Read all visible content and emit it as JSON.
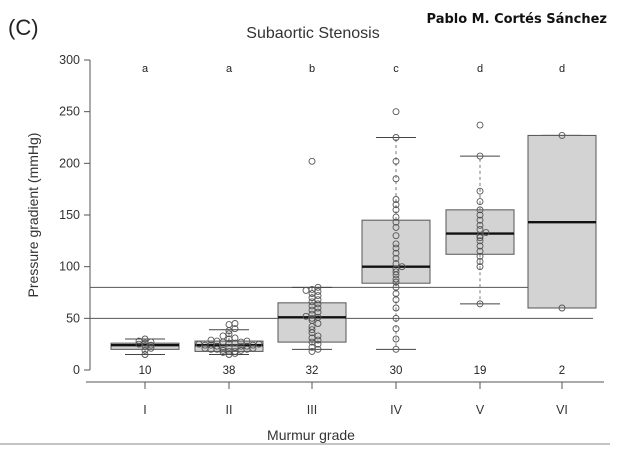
{
  "panel_label": "(C)",
  "author": "Pablo M. Cortés Sánchez",
  "chart_data": {
    "type": "box",
    "title": "Subaortic Stenosis",
    "xlabel": "Murmur grade",
    "ylabel": "Pressure gradient (mmHg)",
    "ylim": [
      0,
      300
    ],
    "yticks": [
      0,
      50,
      100,
      150,
      200,
      250,
      300
    ],
    "categories": [
      "I",
      "II",
      "III",
      "IV",
      "V",
      "VI"
    ],
    "counts": [
      "10",
      "38",
      "32",
      "30",
      "19",
      "2"
    ],
    "letters": [
      "a",
      "a",
      "b",
      "c",
      "d",
      "d"
    ],
    "reference_lines": [
      50,
      80
    ],
    "box_fill": "#d3d3d3",
    "boxes": [
      {
        "whisker_low": 15,
        "q1": 20,
        "median": 24,
        "q3": 26,
        "whisker_high": 30
      },
      {
        "whisker_low": 15,
        "q1": 18,
        "median": 24,
        "q3": 28,
        "whisker_high": 39
      },
      {
        "whisker_low": 20,
        "q1": 27,
        "median": 51,
        "q3": 65,
        "whisker_high": 80
      },
      {
        "whisker_low": 20,
        "q1": 84,
        "median": 100,
        "q3": 145,
        "whisker_high": 225
      },
      {
        "whisker_low": 64,
        "q1": 112,
        "median": 132,
        "q3": 155,
        "whisker_high": 207
      },
      {
        "whisker_low": 60,
        "q1": 60,
        "median": 143,
        "q3": 227,
        "whisker_high": 227
      }
    ],
    "points": [
      [
        15,
        19,
        21,
        23,
        24,
        25,
        26,
        27,
        28,
        30
      ],
      [
        15,
        16,
        17,
        18,
        18,
        19,
        19,
        20,
        20,
        20,
        21,
        21,
        22,
        22,
        22,
        23,
        23,
        23,
        24,
        24,
        24,
        25,
        25,
        26,
        26,
        27,
        27,
        28,
        28,
        29,
        30,
        31,
        33,
        35,
        38,
        40,
        44,
        45
      ],
      [
        18,
        20,
        22,
        25,
        27,
        29,
        31,
        33,
        36,
        39,
        42,
        45,
        48,
        50,
        51,
        52,
        54,
        56,
        58,
        60,
        62,
        64,
        66,
        68,
        70,
        72,
        74,
        76,
        77,
        78,
        80,
        202
      ],
      [
        20,
        30,
        40,
        50,
        60,
        68,
        74,
        80,
        85,
        88,
        92,
        95,
        98,
        100,
        103,
        108,
        113,
        118,
        122,
        130,
        138,
        143,
        148,
        155,
        160,
        165,
        185,
        202,
        225,
        250
      ],
      [
        64,
        100,
        105,
        110,
        115,
        120,
        125,
        128,
        130,
        133,
        136,
        140,
        145,
        150,
        155,
        163,
        173,
        207,
        237
      ],
      [
        60,
        227
      ]
    ]
  }
}
